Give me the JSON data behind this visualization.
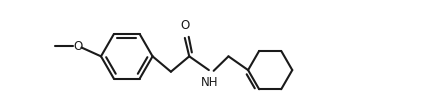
{
  "bg_color": "#ffffff",
  "line_color": "#1a1a1a",
  "lw": 1.5,
  "font_size": 8.5,
  "xlim": [
    -0.5,
    8.8
  ],
  "ylim": [
    -1.3,
    1.6
  ]
}
